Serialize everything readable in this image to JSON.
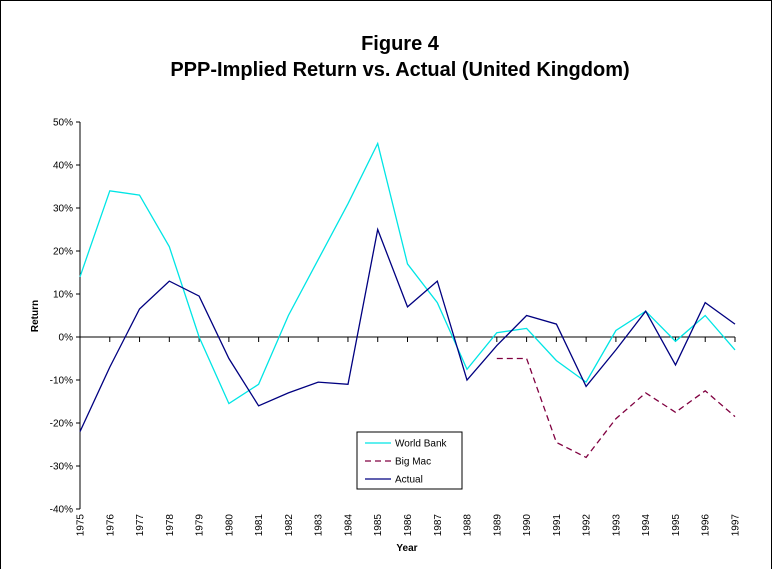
{
  "chart_data": {
    "type": "line",
    "title": "Figure 4",
    "subtitle": "PPP-Implied Return vs. Actual (United Kingdom)",
    "x_label": "Year",
    "y_label": "Return",
    "categories": [
      "1975",
      "1976",
      "1977",
      "1978",
      "1979",
      "1980",
      "1981",
      "1982",
      "1983",
      "1984",
      "1985",
      "1986",
      "1987",
      "1988",
      "1989",
      "1990",
      "1991",
      "1992",
      "1993",
      "1994",
      "1995",
      "1996",
      "1997"
    ],
    "series": [
      {
        "name": "World Bank",
        "color": "#00e5e5",
        "dashed": false,
        "values": [
          14,
          34,
          33,
          21,
          0,
          -15.5,
          -11,
          5,
          18,
          31,
          45,
          17,
          8,
          -7.5,
          1,
          2,
          -5.5,
          -10.5,
          1.5,
          6,
          -1,
          5,
          -3
        ]
      },
      {
        "name": "Big Mac",
        "color": "#800040",
        "dashed": true,
        "values": [
          null,
          null,
          null,
          null,
          null,
          null,
          null,
          null,
          null,
          null,
          null,
          null,
          null,
          null,
          -5,
          -5,
          -24.5,
          -28,
          -19,
          -13,
          -17.5,
          -12.5,
          -18.5
        ]
      },
      {
        "name": "Actual",
        "color": "#000080",
        "dashed": false,
        "values": [
          -22,
          -7,
          6.5,
          13,
          9.5,
          -5,
          -16,
          -13,
          -10.5,
          -11,
          25,
          7,
          13,
          -10,
          -2,
          5,
          3,
          -11.5,
          -3,
          6,
          -6.5,
          8,
          3
        ]
      }
    ],
    "ylim": [
      -40,
      50
    ],
    "yticks": [
      {
        "value": -40,
        "label": "-40%"
      },
      {
        "value": -30,
        "label": "-30%"
      },
      {
        "value": -20,
        "label": "-20%"
      },
      {
        "value": -10,
        "label": "-10%"
      },
      {
        "value": 0,
        "label": "0%"
      },
      {
        "value": 10,
        "label": "10%"
      },
      {
        "value": 20,
        "label": "20%"
      },
      {
        "value": 30,
        "label": "30%"
      },
      {
        "value": 40,
        "label": "40%"
      },
      {
        "value": 50,
        "label": "50%"
      }
    ],
    "grid": false
  }
}
